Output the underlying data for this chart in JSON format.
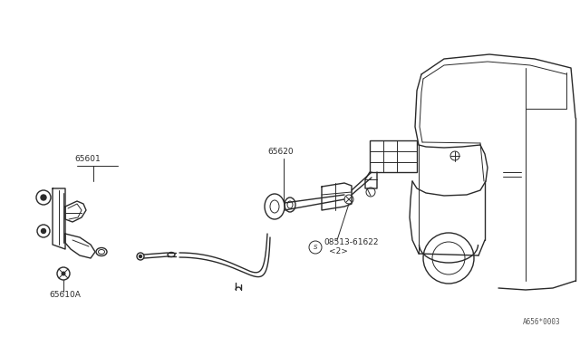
{
  "bg_color": "#ffffff",
  "line_color": "#2a2a2a",
  "label_color": "#2a2a2a",
  "fig_width": 6.4,
  "fig_height": 3.72,
  "dpi": 100,
  "watermark": "A656*0003"
}
